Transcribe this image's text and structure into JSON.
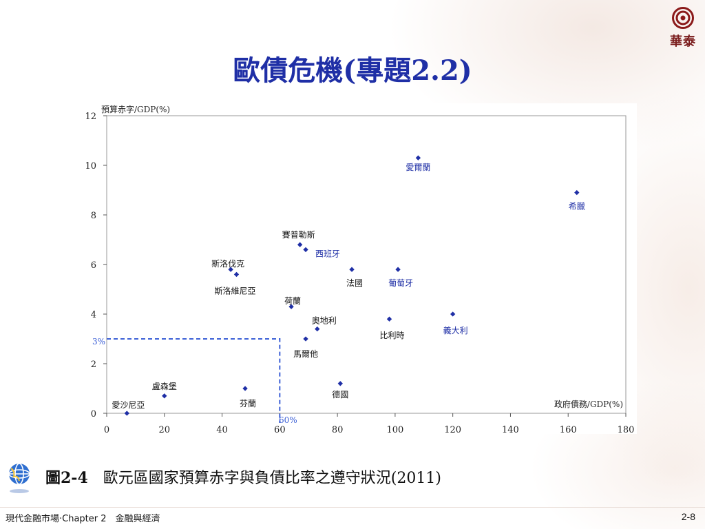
{
  "slide": {
    "title": "歐債危機(專題2.2)",
    "logo_text": "華泰",
    "caption_num": "圖2-4",
    "caption_text": "歐元區國家預算赤字與負債比率之遵守狀況(2011)",
    "footer_left": "現代金融市場‧Chapter 2　金融與經濟",
    "page_number": "2-8"
  },
  "colors": {
    "title": "#1f2fa6",
    "marker": "#1f2fa6",
    "reference_line": "#3b5fd6",
    "label_black": "#111111",
    "label_blue": "#1f2fa6"
  },
  "chart_data": {
    "type": "scatter",
    "ylabel": "預算赤字/GDP(%)",
    "xlabel": "政府債務/GDP(%)",
    "xlim": [
      0,
      180
    ],
    "ylim": [
      0,
      12
    ],
    "x_ticks": [
      0,
      20,
      40,
      60,
      80,
      100,
      120,
      140,
      160,
      180
    ],
    "y_ticks": [
      0,
      2,
      4,
      6,
      8,
      10,
      12
    ],
    "grid": false,
    "reference": {
      "x": 60,
      "y": 3,
      "x_label": "60%",
      "y_label": "3%"
    },
    "points": [
      {
        "name": "愛爾蘭",
        "x": 108,
        "y": 10.3,
        "label_color": "blue"
      },
      {
        "name": "希臘",
        "x": 163,
        "y": 8.9,
        "label_color": "blue"
      },
      {
        "name": "賽普勒斯",
        "x": 67,
        "y": 6.8,
        "label_color": "black"
      },
      {
        "name": "西班牙",
        "x": 69,
        "y": 6.6,
        "label_color": "blue"
      },
      {
        "name": "斯洛伐克",
        "x": 43,
        "y": 5.8,
        "label_color": "black"
      },
      {
        "name": "斯洛維尼亞",
        "x": 45,
        "y": 5.6,
        "label_color": "black"
      },
      {
        "name": "法國",
        "x": 85,
        "y": 5.8,
        "label_color": "black"
      },
      {
        "name": "葡萄牙",
        "x": 101,
        "y": 5.8,
        "label_color": "blue"
      },
      {
        "name": "荷蘭",
        "x": 64,
        "y": 4.3,
        "label_color": "black"
      },
      {
        "name": "奧地利",
        "x": 73,
        "y": 3.4,
        "label_color": "black"
      },
      {
        "name": "比利時",
        "x": 98,
        "y": 3.8,
        "label_color": "black"
      },
      {
        "name": "義大利",
        "x": 120,
        "y": 4.0,
        "label_color": "blue"
      },
      {
        "name": "馬爾他",
        "x": 69,
        "y": 3.0,
        "label_color": "black"
      },
      {
        "name": "德國",
        "x": 81,
        "y": 1.2,
        "label_color": "black"
      },
      {
        "name": "盧森堡",
        "x": 20,
        "y": 0.7,
        "label_color": "black"
      },
      {
        "name": "芬蘭",
        "x": 48,
        "y": 1.0,
        "label_color": "black"
      },
      {
        "name": "愛沙尼亞",
        "x": 7,
        "y": 0.0,
        "label_color": "black"
      }
    ]
  }
}
